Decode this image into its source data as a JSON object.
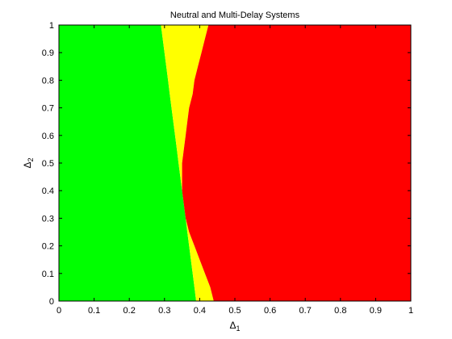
{
  "chart_data": {
    "type": "heatmap",
    "title": "Neutral and Multi-Delay Systems",
    "xlabel": {
      "base": "Δ",
      "sub": "1"
    },
    "ylabel": {
      "base": "Δ",
      "sub": "2"
    },
    "xlim": [
      0,
      1
    ],
    "ylim": [
      0,
      1
    ],
    "xticks": [
      0,
      0.1,
      0.2,
      0.3,
      0.4,
      0.5,
      0.6,
      0.7,
      0.8,
      0.9,
      1
    ],
    "yticks": [
      0,
      0.1,
      0.2,
      0.3,
      0.4,
      0.5,
      0.6,
      0.7,
      0.8,
      0.9,
      1
    ],
    "xtick_labels": [
      "0",
      "0.1",
      "0.2",
      "0.3",
      "0.4",
      "0.5",
      "0.6",
      "0.7",
      "0.8",
      "0.9",
      "1"
    ],
    "ytick_labels": [
      "0",
      "0.1",
      "0.2",
      "0.3",
      "0.4",
      "0.5",
      "0.6",
      "0.7",
      "0.8",
      "0.9",
      "1"
    ],
    "grid": false,
    "region_colors": {
      "green": "#00ff00",
      "yellow": "#ffff00",
      "red": "#ff0000"
    },
    "boundaries": {
      "delta2": [
        0,
        0.05,
        0.1,
        0.15,
        0.2,
        0.25,
        0.3,
        0.35,
        0.4,
        0.45,
        0.5,
        0.55,
        0.6,
        0.65,
        0.7,
        0.75,
        0.8,
        0.85,
        0.9,
        0.95,
        1
      ],
      "green_yellow_delta1": [
        0.39,
        0.385,
        0.38,
        0.375,
        0.37,
        0.365,
        0.36,
        0.355,
        0.35,
        0.345,
        0.34,
        0.335,
        0.33,
        0.325,
        0.32,
        0.315,
        0.31,
        0.305,
        0.3,
        0.295,
        0.29
      ],
      "yellow_red_delta1": [
        0.44,
        0.43,
        0.415,
        0.4,
        0.385,
        0.37,
        0.36,
        0.355,
        0.35,
        0.35,
        0.35,
        0.355,
        0.36,
        0.365,
        0.37,
        0.38,
        0.385,
        0.395,
        0.405,
        0.415,
        0.425
      ]
    }
  }
}
